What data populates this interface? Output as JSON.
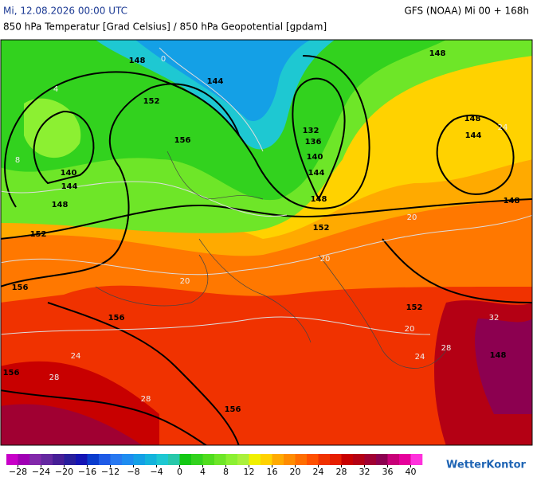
{
  "header": {
    "date": "Mi, 12.08.2026 00:00 UTC",
    "model": "GFS (NOAA) Mi 00 + 168h",
    "subtitle": "850 hPa Temperatur [Grad Celsius] / 850 hPa Geopotential [gpdam]"
  },
  "contour_labels": [
    "148",
    "144",
    "152",
    "156",
    "140",
    "144",
    "148",
    "152",
    "156",
    "156",
    "156",
    "156",
    "132",
    "136",
    "140",
    "144",
    "148",
    "152",
    "152",
    "148",
    "148",
    "144",
    "148",
    "148"
  ],
  "temperature_labels": [
    "0",
    "4",
    "8",
    "24",
    "20",
    "20",
    "24",
    "28",
    "28",
    "32",
    "28",
    "24",
    "20",
    "20"
  ],
  "colorbar": {
    "colors": [
      "#c800c8",
      "#a000b4",
      "#8228aa",
      "#6428a0",
      "#461e96",
      "#281e9c",
      "#1414b4",
      "#0a3ccd",
      "#1e5ae6",
      "#2878f0",
      "#1e8cf0",
      "#14a0e6",
      "#14b4dc",
      "#1ec8d2",
      "#28c8aa",
      "#14c814",
      "#32d21e",
      "#50dc1e",
      "#6ee628",
      "#8cf032",
      "#aaf03c",
      "#f0f000",
      "#ffd200",
      "#ffaa00",
      "#ff8c00",
      "#ff6e00",
      "#ff5000",
      "#f03200",
      "#e61e00",
      "#c80000",
      "#b40014",
      "#a00032",
      "#8c0050",
      "#c80078",
      "#e6009b",
      "#ff32dc"
    ],
    "ticks": [
      "−28",
      "−24",
      "−20",
      "−16",
      "−12",
      "−8",
      "−4",
      "0",
      "4",
      "8",
      "12",
      "16",
      "20",
      "24",
      "28",
      "32",
      "36",
      "40"
    ]
  },
  "logo": "WetterKontor"
}
